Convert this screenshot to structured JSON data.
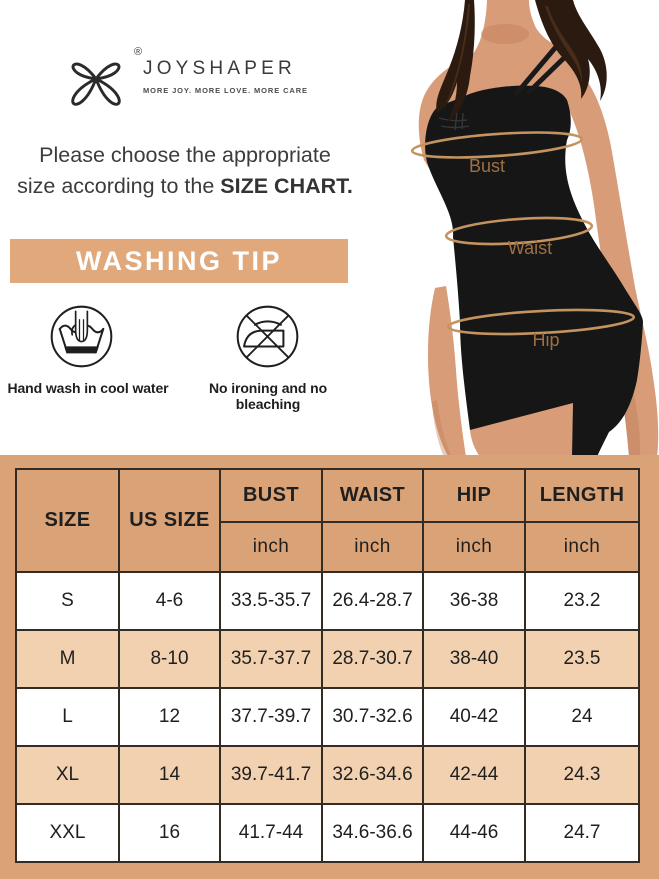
{
  "brand": {
    "name": "JOYSHAPER",
    "tagline": "MORE JOY. MORE LOVE. MORE CARE",
    "registered_mark": "®",
    "logo_icon": "ribbon-bow-icon"
  },
  "intro": {
    "line1": "Please choose the appropriate",
    "line2_prefix": "size according to the ",
    "line2_bold": "SIZE CHART."
  },
  "washing_tip": {
    "title": "WASHING TIP",
    "items": [
      {
        "icon": "hand-wash-icon",
        "label": "Hand wash in cool water"
      },
      {
        "icon": "no-ironing-icon",
        "label": "No ironing and no bleaching"
      }
    ]
  },
  "model_figure": {
    "garment": "black shapewear slip dress",
    "measurement_labels": [
      "Bust",
      "Waist",
      "Hip"
    ]
  },
  "size_chart": {
    "columns": [
      "SIZE",
      "US SIZE",
      "BUST",
      "WAIST",
      "HIP",
      "LENGTH"
    ],
    "measure_columns": [
      "BUST",
      "WAIST",
      "HIP",
      "LENGTH"
    ],
    "unit": "inch",
    "rows": [
      {
        "size": "S",
        "us_size": "4-6",
        "bust": "33.5-35.7",
        "waist": "26.4-28.7",
        "hip": "36-38",
        "length": "23.2"
      },
      {
        "size": "M",
        "us_size": "8-10",
        "bust": "35.7-37.7",
        "waist": "28.7-30.7",
        "hip": "38-40",
        "length": "23.5"
      },
      {
        "size": "L",
        "us_size": "12",
        "bust": "37.7-39.7",
        "waist": "30.7-32.6",
        "hip": "40-42",
        "length": "24"
      },
      {
        "size": "XL",
        "us_size": "14",
        "bust": "39.7-41.7",
        "waist": "32.6-34.6",
        "hip": "42-44",
        "length": "24.3"
      },
      {
        "size": "XXL",
        "us_size": "16",
        "bust": "41.7-44",
        "waist": "34.6-36.6",
        "hip": "44-46",
        "length": "24.7"
      }
    ]
  },
  "colors": {
    "tan": "#e0a87b",
    "table_bg": "#d9a277",
    "row_alt": "#f2d1b1",
    "row_white": "#ffffff",
    "border": "#332c25",
    "ink": "#1f1f1f",
    "measure": "#c3945f",
    "body_label": "#9c7044",
    "skin": "#d89c78",
    "hair": "#2a1a10",
    "dress": "#161616"
  }
}
